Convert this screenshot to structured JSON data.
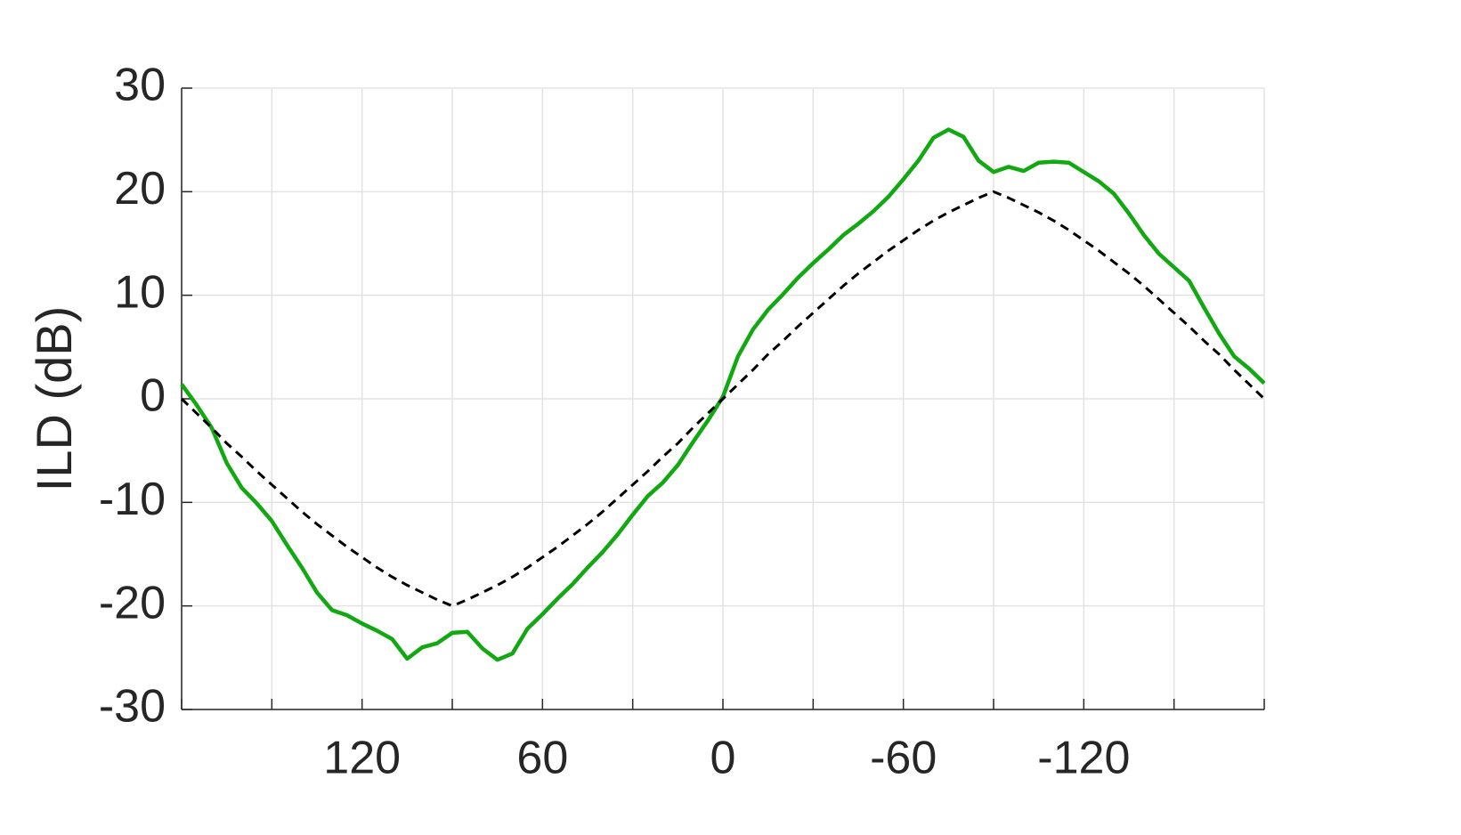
{
  "chart_data": {
    "type": "line",
    "y_label": "ILD (dB)",
    "x": [
      180,
      175,
      170,
      165,
      160,
      155,
      150,
      145,
      140,
      135,
      130,
      125,
      120,
      115,
      110,
      105,
      100,
      95,
      90,
      85,
      80,
      75,
      70,
      65,
      60,
      55,
      50,
      45,
      40,
      35,
      30,
      25,
      20,
      15,
      10,
      5,
      0,
      -5,
      -10,
      -15,
      -20,
      -25,
      -30,
      -35,
      -40,
      -45,
      -50,
      -55,
      -60,
      -65,
      -70,
      -75,
      -80,
      -85,
      -90,
      -95,
      -100,
      -105,
      -110,
      -115,
      -120,
      -125,
      -130,
      -135,
      -140,
      -145,
      -150,
      -155,
      -160,
      -165,
      -170,
      -175,
      -180
    ],
    "series": [
      {
        "color": "#12a812",
        "dash": "solid",
        "values": [
          1.4,
          -0.6,
          -2.8,
          -6.2,
          -8.6,
          -10.1,
          -11.8,
          -14.1,
          -16.3,
          -18.7,
          -20.4,
          -20.9,
          -21.7,
          -22.4,
          -23.2,
          -25.1,
          -24.0,
          -23.6,
          -22.6,
          -22.5,
          -24.1,
          -25.2,
          -24.6,
          -22.2,
          -20.8,
          -19.3,
          -17.9,
          -16.3,
          -14.8,
          -13.1,
          -11.2,
          -9.4,
          -8.1,
          -6.4,
          -4.2,
          -2.1,
          0.2,
          4.1,
          6.7,
          8.6,
          10.1,
          11.7,
          13.1,
          14.4,
          15.8,
          16.9,
          18.1,
          19.5,
          21.2,
          23.0,
          25.2,
          26.0,
          25.3,
          23.0,
          21.9,
          22.4,
          22.0,
          22.8,
          22.9,
          22.8,
          21.9,
          21.0,
          19.8,
          17.9,
          15.8,
          14.0,
          12.7,
          11.4,
          8.8,
          6.3,
          4.1,
          2.9,
          1.5
        ]
      },
      {
        "color": "#000000",
        "dash": "dashed",
        "values": [
          0,
          -1.4,
          -2.8,
          -4.3,
          -5.6,
          -7.0,
          -8.3,
          -9.6,
          -10.9,
          -12.1,
          -13.2,
          -14.3,
          -15.3,
          -16.3,
          -17.2,
          -18.0,
          -18.7,
          -19.4,
          -20,
          -19.4,
          -18.7,
          -18.0,
          -17.2,
          -16.3,
          -15.3,
          -14.3,
          -13.2,
          -12.1,
          -10.9,
          -9.6,
          -8.3,
          -7.0,
          -5.6,
          -4.3,
          -2.8,
          -1.4,
          0,
          1.4,
          2.8,
          4.3,
          5.6,
          7.0,
          8.3,
          9.6,
          10.9,
          12.1,
          13.2,
          14.3,
          15.3,
          16.3,
          17.2,
          18.0,
          18.7,
          19.4,
          20,
          19.4,
          18.7,
          18.0,
          17.2,
          16.3,
          15.3,
          14.3,
          13.2,
          12.1,
          10.9,
          9.6,
          8.3,
          7.0,
          5.6,
          4.3,
          2.8,
          1.4,
          0
        ]
      }
    ],
    "xlim": [
      180,
      -180
    ],
    "xticks": [
      120,
      60,
      0,
      -60,
      -120
    ],
    "xgrid_ticks": [
      180,
      150,
      90,
      30,
      -30,
      -90,
      -150,
      -180
    ],
    "ylim": [
      -30,
      30
    ],
    "yticks": [
      -30,
      -20,
      -10,
      0,
      10,
      20,
      30
    ],
    "grid": true
  }
}
